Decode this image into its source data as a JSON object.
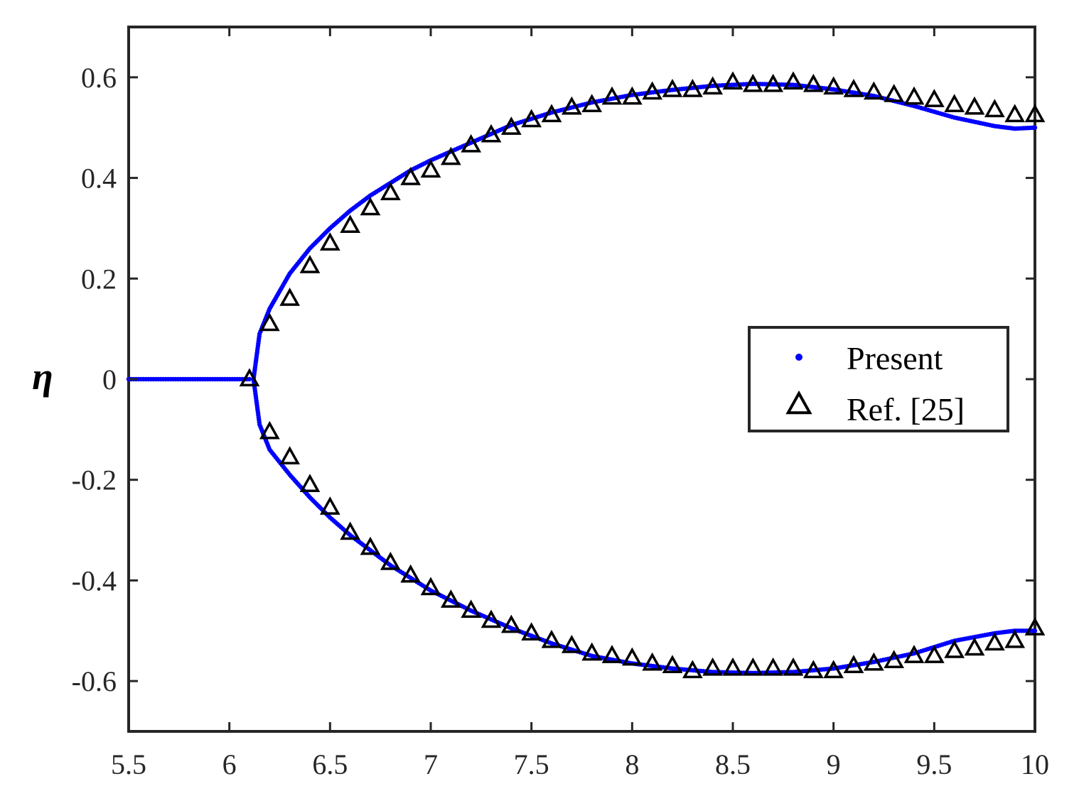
{
  "chart_data": {
    "type": "scatter",
    "title": "",
    "xlabel": "",
    "ylabel": "η",
    "xlim": [
      5.5,
      10
    ],
    "ylim": [
      -0.7,
      0.7
    ],
    "x_ticks": [
      5.5,
      6,
      6.5,
      7,
      7.5,
      8,
      8.5,
      9,
      9.5,
      10
    ],
    "x_tick_labels": [
      "5.5",
      "6",
      "6.5",
      "7",
      "7.5",
      "8",
      "8.5",
      "9",
      "9.5",
      "10"
    ],
    "y_ticks": [
      -0.6,
      -0.4,
      -0.2,
      0,
      0.2,
      0.4,
      0.6
    ],
    "y_tick_labels": [
      "-0.6",
      "-0.4",
      "-0.2",
      "0",
      "0.2",
      "0.4",
      "0.6"
    ],
    "grid": false,
    "legend_position": "right",
    "series": [
      {
        "name": "Present",
        "marker": "dot",
        "color": "#0000ff",
        "zero_branch": {
          "x_from": 5.5,
          "x_to": 6.1,
          "y": 0
        },
        "upper_branch": {
          "x": [
            6.12,
            6.15,
            6.2,
            6.3,
            6.4,
            6.5,
            6.6,
            6.7,
            6.8,
            6.9,
            7.0,
            7.2,
            7.4,
            7.6,
            7.8,
            8.0,
            8.2,
            8.4,
            8.6,
            8.8,
            9.0,
            9.2,
            9.4,
            9.6,
            9.8,
            9.9,
            10.0
          ],
          "y": [
            0.0,
            0.09,
            0.14,
            0.21,
            0.26,
            0.3,
            0.335,
            0.365,
            0.39,
            0.415,
            0.435,
            0.47,
            0.505,
            0.53,
            0.55,
            0.565,
            0.575,
            0.583,
            0.587,
            0.585,
            0.576,
            0.563,
            0.543,
            0.52,
            0.503,
            0.498,
            0.5
          ]
        },
        "lower_branch": {
          "x": [
            6.12,
            6.15,
            6.2,
            6.3,
            6.4,
            6.5,
            6.6,
            6.7,
            6.8,
            6.9,
            7.0,
            7.2,
            7.4,
            7.6,
            7.8,
            8.0,
            8.2,
            8.4,
            8.6,
            8.8,
            9.0,
            9.2,
            9.4,
            9.6,
            9.8,
            9.9,
            10.0
          ],
          "y": [
            0.0,
            -0.09,
            -0.14,
            -0.19,
            -0.235,
            -0.275,
            -0.31,
            -0.34,
            -0.37,
            -0.395,
            -0.42,
            -0.46,
            -0.495,
            -0.525,
            -0.55,
            -0.565,
            -0.575,
            -0.582,
            -0.584,
            -0.582,
            -0.575,
            -0.562,
            -0.545,
            -0.52,
            -0.505,
            -0.5,
            -0.5
          ]
        }
      },
      {
        "name": "Ref. [25]",
        "marker": "triangle",
        "color": "#000000",
        "upper": {
          "x": [
            6.1,
            6.2,
            6.3,
            6.4,
            6.5,
            6.6,
            6.7,
            6.8,
            6.9,
            7.0,
            7.1,
            7.2,
            7.3,
            7.4,
            7.5,
            7.6,
            7.7,
            7.8,
            7.9,
            8.0,
            8.1,
            8.2,
            8.3,
            8.4,
            8.5,
            8.6,
            8.7,
            8.8,
            8.9,
            9.0,
            9.1,
            9.2,
            9.3,
            9.4,
            9.5,
            9.6,
            9.7,
            9.8,
            9.9,
            10.0
          ],
          "y": [
            0.0,
            0.11,
            0.16,
            0.225,
            0.27,
            0.305,
            0.34,
            0.37,
            0.4,
            0.415,
            0.44,
            0.465,
            0.485,
            0.5,
            0.515,
            0.525,
            0.54,
            0.545,
            0.56,
            0.56,
            0.57,
            0.575,
            0.575,
            0.58,
            0.59,
            0.585,
            0.585,
            0.59,
            0.585,
            0.58,
            0.575,
            0.57,
            0.565,
            0.56,
            0.555,
            0.545,
            0.54,
            0.535,
            0.525,
            0.525
          ]
        },
        "lower": {
          "x": [
            6.2,
            6.3,
            6.4,
            6.5,
            6.6,
            6.7,
            6.8,
            6.9,
            7.0,
            7.1,
            7.2,
            7.3,
            7.4,
            7.5,
            7.6,
            7.7,
            7.8,
            7.9,
            8.0,
            8.1,
            8.2,
            8.3,
            8.4,
            8.5,
            8.6,
            8.7,
            8.8,
            8.9,
            9.0,
            9.1,
            9.2,
            9.3,
            9.4,
            9.5,
            9.6,
            9.7,
            9.8,
            9.9,
            10.0
          ],
          "y": [
            -0.105,
            -0.155,
            -0.21,
            -0.255,
            -0.305,
            -0.335,
            -0.365,
            -0.39,
            -0.415,
            -0.44,
            -0.46,
            -0.48,
            -0.49,
            -0.505,
            -0.52,
            -0.53,
            -0.545,
            -0.55,
            -0.555,
            -0.565,
            -0.57,
            -0.58,
            -0.575,
            -0.575,
            -0.575,
            -0.575,
            -0.575,
            -0.58,
            -0.58,
            -0.57,
            -0.565,
            -0.56,
            -0.55,
            -0.55,
            -0.54,
            -0.535,
            -0.525,
            -0.52,
            -0.495
          ]
        }
      }
    ]
  }
}
